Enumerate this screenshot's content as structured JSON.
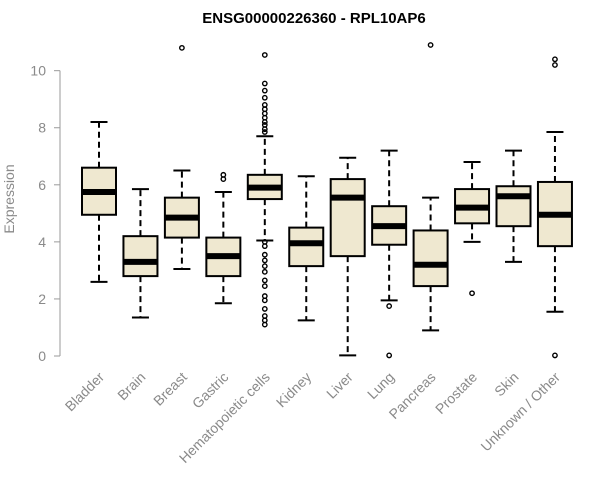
{
  "chart_data": {
    "type": "box",
    "title": "ENSG00000226360 - RPL10AP6",
    "xlabel": "",
    "ylabel": "Expression",
    "ylim": [
      0,
      10.9
    ],
    "yticks": [
      0,
      2,
      4,
      6,
      8,
      10
    ],
    "box_fill": "#efe8d0",
    "categories": [
      "Bladder",
      "Brain",
      "Breast",
      "Gastric",
      "Hematopoietic cells",
      "Kidney",
      "Liver",
      "Lung",
      "Pancreas",
      "Prostate",
      "Skin",
      "Unknown / Other"
    ],
    "boxes": [
      {
        "category": "Bladder",
        "whisker_low": 2.6,
        "q1": 4.95,
        "median": 5.75,
        "q3": 6.6,
        "whisker_high": 8.2,
        "outliers": []
      },
      {
        "category": "Brain",
        "whisker_low": 1.35,
        "q1": 2.8,
        "median": 3.3,
        "q3": 4.2,
        "whisker_high": 5.85,
        "outliers": []
      },
      {
        "category": "Breast",
        "whisker_low": 3.05,
        "q1": 4.15,
        "median": 4.85,
        "q3": 5.55,
        "whisker_high": 6.5,
        "outliers": [
          10.8
        ]
      },
      {
        "category": "Gastric",
        "whisker_low": 1.85,
        "q1": 2.8,
        "median": 3.5,
        "q3": 4.15,
        "whisker_high": 5.75,
        "outliers": [
          6.2,
          6.35
        ]
      },
      {
        "category": "Hematopoietic cells",
        "whisker_low": 4.05,
        "q1": 5.5,
        "median": 5.9,
        "q3": 6.35,
        "whisker_high": 7.7,
        "outliers": [
          10.55,
          9.55,
          9.3,
          9.05,
          8.8,
          8.65,
          8.5,
          8.35,
          8.2,
          8.1,
          7.95,
          7.85,
          4.0,
          3.85,
          3.55,
          3.35,
          3.15,
          2.95,
          2.65,
          2.45,
          2.1,
          1.95,
          1.65,
          1.4,
          1.25,
          1.1
        ]
      },
      {
        "category": "Kidney",
        "whisker_low": 1.25,
        "q1": 3.15,
        "median": 3.95,
        "q3": 4.5,
        "whisker_high": 6.3,
        "outliers": []
      },
      {
        "category": "Liver",
        "whisker_low": 0.02,
        "q1": 3.5,
        "median": 5.55,
        "q3": 6.2,
        "whisker_high": 6.95,
        "outliers": []
      },
      {
        "category": "Lung",
        "whisker_low": 1.95,
        "q1": 3.9,
        "median": 4.55,
        "q3": 5.25,
        "whisker_high": 7.2,
        "outliers": [
          1.75,
          0.02
        ]
      },
      {
        "category": "Pancreas",
        "whisker_low": 0.9,
        "q1": 2.45,
        "median": 3.2,
        "q3": 4.4,
        "whisker_high": 5.55,
        "outliers": [
          10.9
        ]
      },
      {
        "category": "Prostate",
        "whisker_low": 4.0,
        "q1": 4.65,
        "median": 5.2,
        "q3": 5.85,
        "whisker_high": 6.8,
        "outliers": [
          2.2
        ]
      },
      {
        "category": "Skin",
        "whisker_low": 3.3,
        "q1": 4.55,
        "median": 5.6,
        "q3": 5.95,
        "whisker_high": 7.2,
        "outliers": []
      },
      {
        "category": "Unknown / Other",
        "whisker_low": 1.55,
        "q1": 3.85,
        "median": 4.95,
        "q3": 6.1,
        "whisker_high": 7.85,
        "outliers": [
          10.4,
          10.2,
          0.02
        ]
      }
    ]
  }
}
